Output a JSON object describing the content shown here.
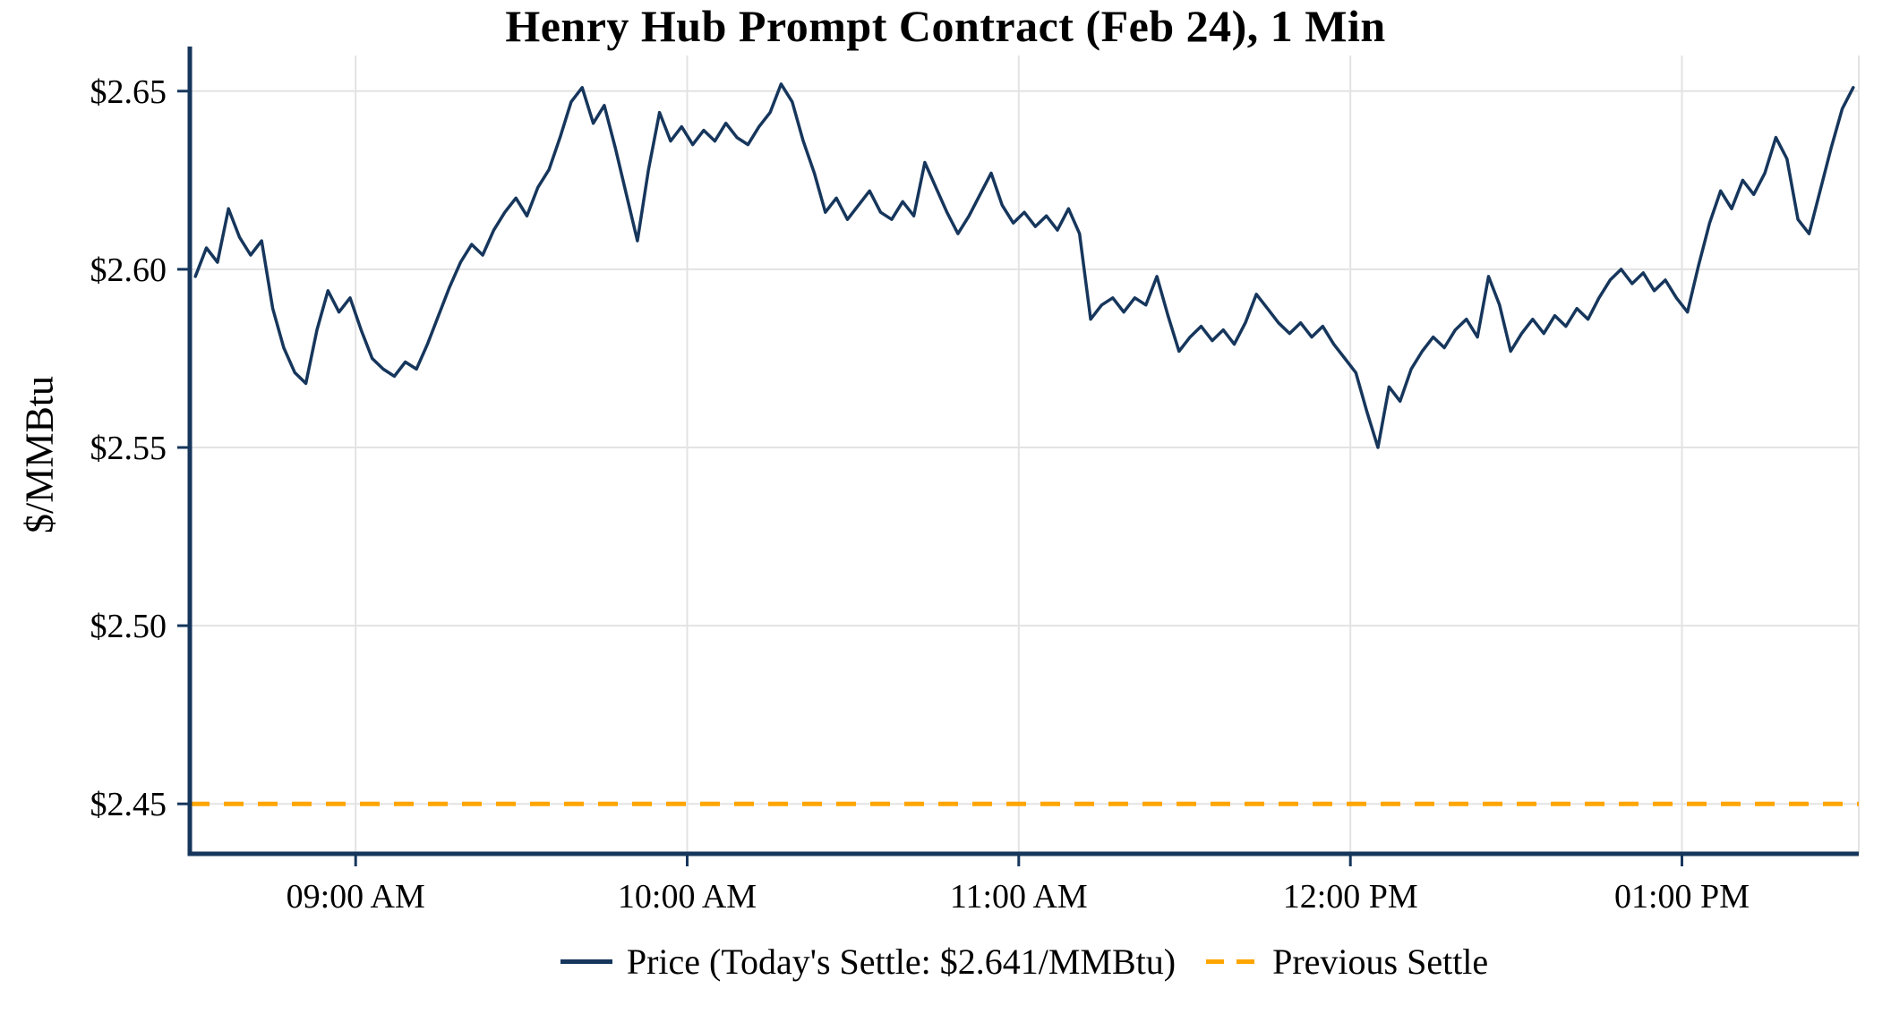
{
  "colors": {
    "price_line": "#16365C",
    "previous_settle": "#FFA500",
    "grid": "#E3E3E3",
    "axis": "#16365C",
    "text": "#000000",
    "background": "#FFFFFF"
  },
  "chart_data": {
    "type": "line",
    "title": "Henry Hub Prompt Contract (Feb 24), 1 Min",
    "xlabel": "",
    "ylabel": "$/MMBtu",
    "grid": true,
    "legend_position": "bottom",
    "ylim": [
      2.436,
      2.66
    ],
    "xlim_minutes": [
      510,
      812
    ],
    "y_ticks": [
      {
        "value": 2.45,
        "label": "$2.45"
      },
      {
        "value": 2.5,
        "label": "$2.50"
      },
      {
        "value": 2.55,
        "label": "$2.55"
      },
      {
        "value": 2.6,
        "label": "$2.60"
      },
      {
        "value": 2.65,
        "label": "$2.65"
      }
    ],
    "x_ticks": [
      {
        "minute": 540,
        "label": "09:00 AM"
      },
      {
        "minute": 600,
        "label": "10:00 AM"
      },
      {
        "minute": 660,
        "label": "11:00 AM"
      },
      {
        "minute": 720,
        "label": "12:00 PM"
      },
      {
        "minute": 780,
        "label": "01:00 PM"
      }
    ],
    "legend": {
      "price_label": "Price (Today's Settle: $2.641/MMBtu)",
      "settle_label": "Previous Settle"
    },
    "previous_settle_value": 2.45,
    "todays_settle_value": 2.641,
    "series": [
      {
        "name": "Price",
        "unit": "$/MMBtu",
        "start_time": "08:31 AM",
        "end_time": "01:31 PM",
        "start_minute": 511,
        "step_minutes": 2,
        "values": [
          2.598,
          2.606,
          2.602,
          2.617,
          2.609,
          2.604,
          2.608,
          2.589,
          2.578,
          2.571,
          2.568,
          2.583,
          2.594,
          2.588,
          2.592,
          2.583,
          2.575,
          2.572,
          2.57,
          2.574,
          2.572,
          2.579,
          2.587,
          2.595,
          2.602,
          2.607,
          2.604,
          2.611,
          2.616,
          2.62,
          2.615,
          2.623,
          2.628,
          2.637,
          2.647,
          2.651,
          2.641,
          2.646,
          2.634,
          2.621,
          2.608,
          2.628,
          2.644,
          2.636,
          2.64,
          2.635,
          2.639,
          2.636,
          2.641,
          2.637,
          2.635,
          2.64,
          2.644,
          2.652,
          2.647,
          2.636,
          2.627,
          2.616,
          2.62,
          2.614,
          2.618,
          2.622,
          2.616,
          2.614,
          2.619,
          2.615,
          2.63,
          2.623,
          2.616,
          2.61,
          2.615,
          2.621,
          2.627,
          2.618,
          2.613,
          2.616,
          2.612,
          2.615,
          2.611,
          2.617,
          2.61,
          2.586,
          2.59,
          2.592,
          2.588,
          2.592,
          2.59,
          2.598,
          2.587,
          2.577,
          2.581,
          2.584,
          2.58,
          2.583,
          2.579,
          2.585,
          2.593,
          2.589,
          2.585,
          2.582,
          2.585,
          2.581,
          2.584,
          2.579,
          2.575,
          2.571,
          2.56,
          2.55,
          2.567,
          2.563,
          2.572,
          2.577,
          2.581,
          2.578,
          2.583,
          2.586,
          2.581,
          2.598,
          2.59,
          2.577,
          2.582,
          2.586,
          2.582,
          2.587,
          2.584,
          2.589,
          2.586,
          2.592,
          2.597,
          2.6,
          2.596,
          2.599,
          2.594,
          2.597,
          2.592,
          2.588,
          2.601,
          2.613,
          2.622,
          2.617,
          2.625,
          2.621,
          2.627,
          2.637,
          2.631,
          2.614,
          2.61,
          2.622,
          2.634,
          2.645,
          2.651
        ]
      }
    ]
  }
}
